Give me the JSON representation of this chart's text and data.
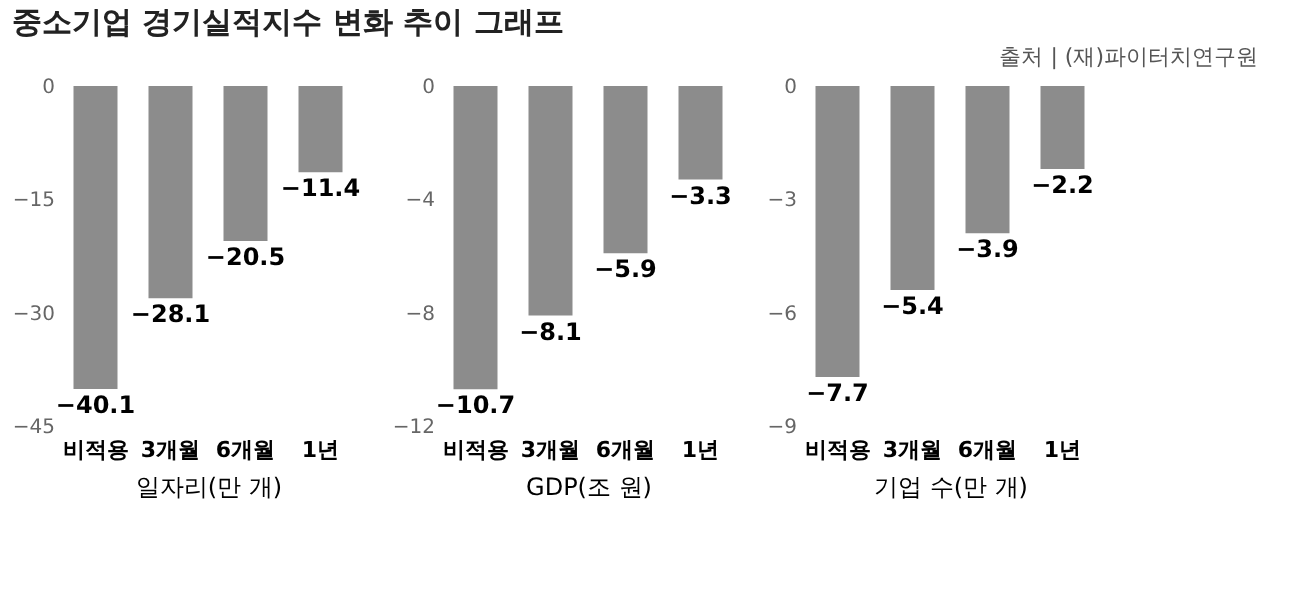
{
  "chart_data": [
    {
      "type": "bar",
      "title": "중소기업 경기실적지수 변화 추이 그래프",
      "annotations": [
        "출처 | (재)파이터치연구원"
      ],
      "xlabel": "일자리(만 개)",
      "categories": [
        "비적용",
        "3개월",
        "6개월",
        "1년"
      ],
      "series": [
        {
          "color": "#8c8c8c",
          "values": [
            -40.1,
            -28.1,
            -20.5,
            -11.4
          ]
        }
      ],
      "ylim": [
        -45,
        0
      ],
      "yticks": [
        0,
        -15,
        -30,
        -45
      ],
      "data_labels": true,
      "grid": false
    },
    {
      "type": "bar",
      "xlabel": "GDP(조 원)",
      "categories": [
        "비적용",
        "3개월",
        "6개월",
        "1년"
      ],
      "series": [
        {
          "color": "#8c8c8c",
          "values": [
            -10.7,
            -8.1,
            -5.9,
            -3.3
          ]
        }
      ],
      "ylim": [
        -12,
        0
      ],
      "yticks": [
        0,
        -4,
        -8,
        -12
      ],
      "data_labels": true,
      "grid": false
    },
    {
      "type": "bar",
      "xlabel": "기업 수(만 개)",
      "categories": [
        "비적용",
        "3개월",
        "6개월",
        "1년"
      ],
      "series": [
        {
          "color": "#8c8c8c",
          "values": [
            -7.7,
            -5.4,
            -3.9,
            -2.2
          ]
        }
      ],
      "ylim": [
        -9,
        0
      ],
      "yticks": [
        0,
        -3,
        -6,
        -9
      ],
      "data_labels": true,
      "grid": false
    }
  ]
}
